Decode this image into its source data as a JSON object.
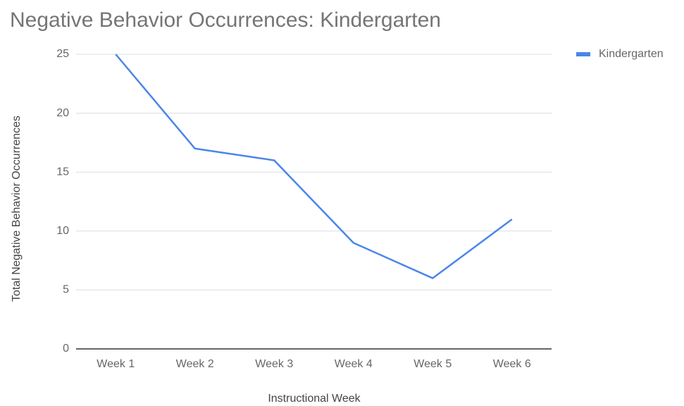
{
  "chart_data": {
    "type": "line",
    "title": "Negative Behavior Occurrences: Kindergarten",
    "xlabel": "Instructional Week",
    "ylabel": "Total Negative Behavior Occurrences",
    "categories": [
      "Week 1",
      "Week 2",
      "Week 3",
      "Week 4",
      "Week 5",
      "Week 6"
    ],
    "series": [
      {
        "name": "Kindergarten",
        "color": "#4a86e8",
        "values": [
          25,
          17,
          16,
          9,
          6,
          11
        ]
      }
    ],
    "ylim": [
      0,
      25
    ],
    "yticks": [
      0,
      5,
      10,
      15,
      20,
      25
    ],
    "grid": true,
    "legend": "right"
  }
}
